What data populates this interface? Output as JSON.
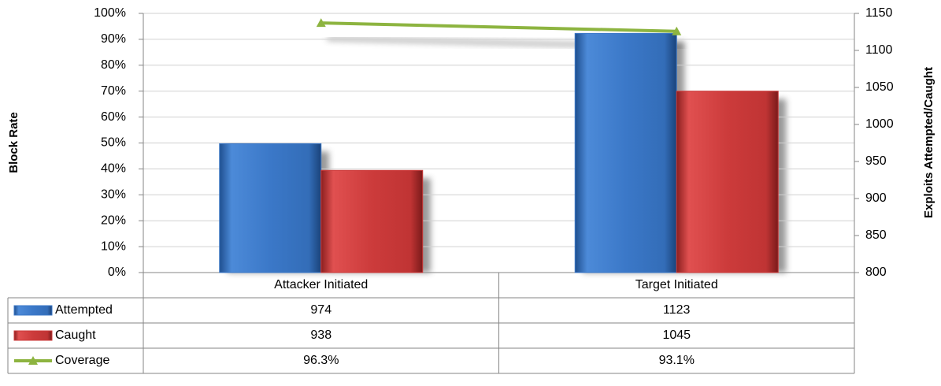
{
  "chart_data": {
    "type": "bar",
    "categories": [
      "Attacker Initiated",
      "Target Initiated"
    ],
    "y_label": "Block Rate",
    "y2_label": "Exploits Attempted/Caught",
    "ylim": [
      0,
      100
    ],
    "yticks": [
      {
        "value": 0,
        "label": "0%"
      },
      {
        "value": 10,
        "label": "10%"
      },
      {
        "value": 20,
        "label": "20%"
      },
      {
        "value": 30,
        "label": "30%"
      },
      {
        "value": 40,
        "label": "40%"
      },
      {
        "value": 50,
        "label": "50%"
      },
      {
        "value": 60,
        "label": "60%"
      },
      {
        "value": 70,
        "label": "70%"
      },
      {
        "value": 80,
        "label": "80%"
      },
      {
        "value": 90,
        "label": "90%"
      },
      {
        "value": 100,
        "label": "100%"
      }
    ],
    "y2lim": [
      800,
      1150
    ],
    "y2ticks": [
      800,
      850,
      900,
      950,
      1000,
      1050,
      1100,
      1150
    ],
    "grid": true,
    "series": [
      {
        "name": "Attempted",
        "color": "#3b78c8",
        "type": "bar",
        "axis": "y2",
        "values": [
          974,
          1123
        ]
      },
      {
        "name": "Caught",
        "color": "#cc3b3b",
        "type": "bar",
        "axis": "y2",
        "values": [
          938,
          1045
        ]
      },
      {
        "name": "Coverage",
        "color": "#8db440",
        "type": "line",
        "axis": "y",
        "values": [
          96.3,
          93.1
        ],
        "value_labels": [
          "96.3%",
          "93.1%"
        ]
      }
    ]
  }
}
